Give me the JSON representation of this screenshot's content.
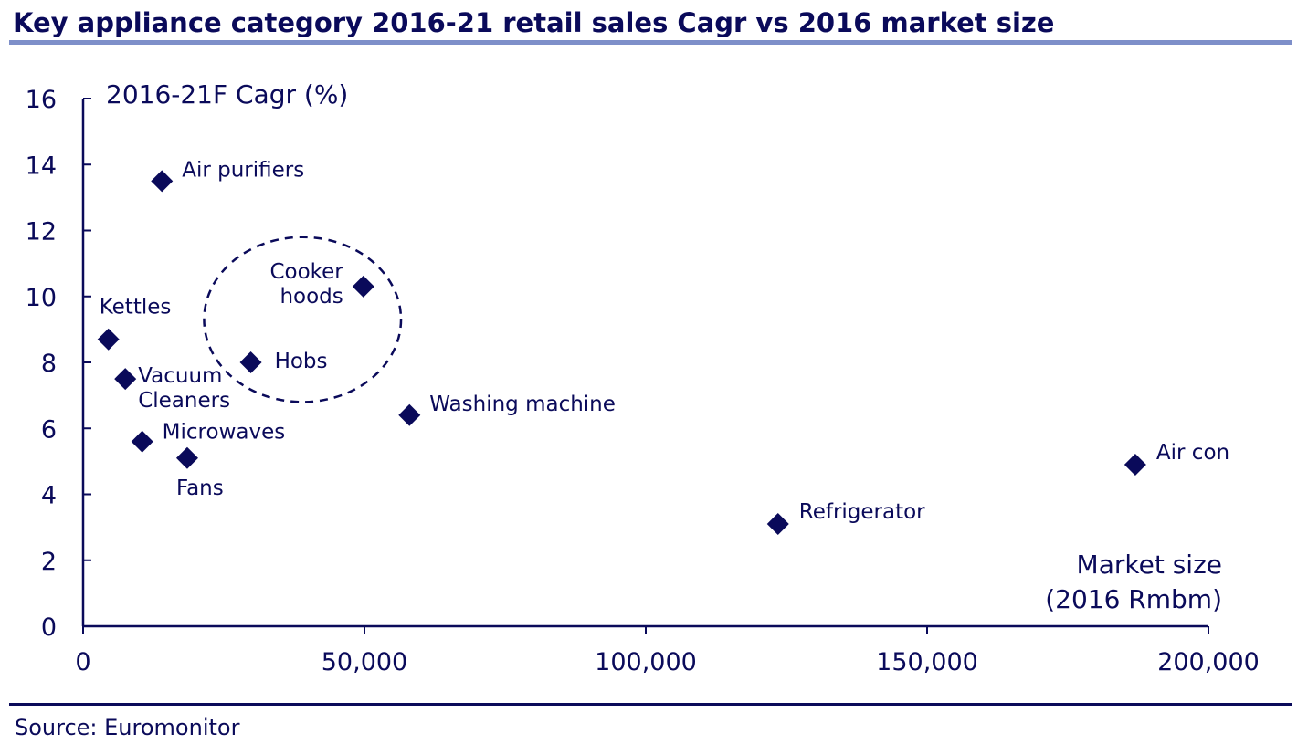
{
  "chart_data": {
    "type": "scatter",
    "title": "Key appliance category 2016-21 retail sales Cagr vs 2016 market size",
    "ylabel": "2016-21F Cagr (%)",
    "xlabel": [
      "Market size",
      "(2016 Rmbm)"
    ],
    "xlim": [
      0,
      200000
    ],
    "ylim": [
      0,
      16
    ],
    "xticks": [
      0,
      50000,
      100000,
      150000,
      200000
    ],
    "xtick_labels": [
      "0",
      "50,000",
      "100,000",
      "150,000",
      "200,000"
    ],
    "yticks": [
      0,
      2,
      4,
      6,
      8,
      10,
      12,
      14,
      16
    ],
    "ytick_labels": [
      "0",
      "2",
      "4",
      "6",
      "8",
      "10",
      "12",
      "14",
      "16"
    ],
    "grid": false,
    "marker_color": "#0a0a5a",
    "points": [
      {
        "label": [
          "Air purifiers"
        ],
        "x": 14000,
        "y": 13.5
      },
      {
        "label": [
          "Cooker",
          "hoods"
        ],
        "x": 49800,
        "y": 10.3
      },
      {
        "label": [
          "Kettles"
        ],
        "x": 4500,
        "y": 8.7
      },
      {
        "label": [
          "Hobs"
        ],
        "x": 29800,
        "y": 8.0
      },
      {
        "label": [
          "Vacuum",
          "Cleaners"
        ],
        "x": 7500,
        "y": 7.5
      },
      {
        "label": [
          "Washing machine"
        ],
        "x": 58000,
        "y": 6.4
      },
      {
        "label": [
          "Microwaves"
        ],
        "x": 10500,
        "y": 5.6
      },
      {
        "label": [
          "Fans"
        ],
        "x": 18500,
        "y": 5.1
      },
      {
        "label": [
          "Air con"
        ],
        "x": 187000,
        "y": 4.9
      },
      {
        "label": [
          "Refrigerator"
        ],
        "x": 123500,
        "y": 3.1
      }
    ],
    "annotation": {
      "type": "dashed-ellipse",
      "cx": 39000,
      "cy": 9.3,
      "rx": 17500,
      "ry": 2.5
    }
  },
  "source": "Source: Euromonitor"
}
